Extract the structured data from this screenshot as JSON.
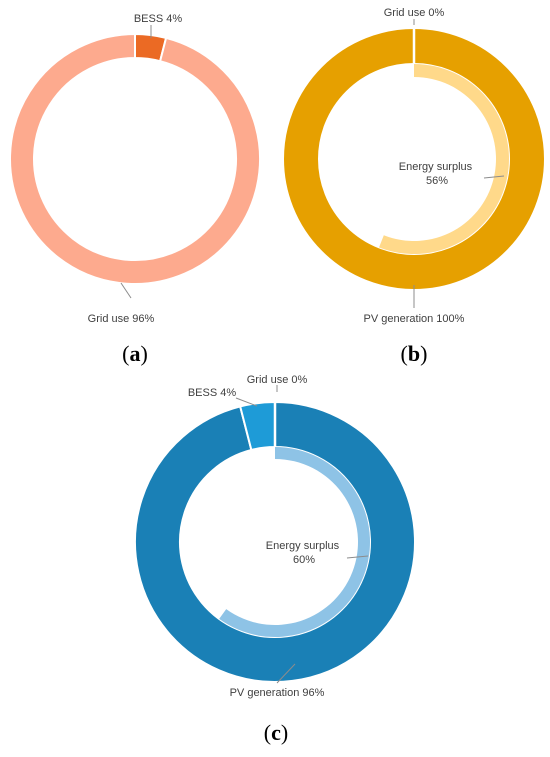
{
  "chart_data": [
    {
      "type": "pie",
      "panel": "a",
      "colors": {
        "Grid use": "#FDAA8E",
        "BESS": "#EB6A24"
      },
      "series": [
        {
          "name": "outer",
          "slices": [
            {
              "label": "BESS",
              "value": 4,
              "text": "BESS 4%"
            },
            {
              "label": "Grid use",
              "value": 96,
              "text": "Grid use 96%"
            }
          ]
        }
      ]
    },
    {
      "type": "pie",
      "panel": "b",
      "colors": {
        "PV generation": "#E6A000",
        "Grid use": "#E6A000",
        "Energy surplus": "#FFD98A"
      },
      "series": [
        {
          "name": "outer",
          "slices": [
            {
              "label": "Grid use",
              "value": 0,
              "text": "Grid use 0%"
            },
            {
              "label": "PV generation",
              "value": 100,
              "text": "PV generation 100%"
            }
          ]
        },
        {
          "name": "inner",
          "slices": [
            {
              "label": "Energy surplus",
              "value": 56,
              "text_line1": "Energy surplus",
              "text_line2": "56%"
            }
          ]
        }
      ]
    },
    {
      "type": "pie",
      "panel": "c",
      "colors": {
        "PV generation": "#1A80B6",
        "BESS": "#1E9BD7",
        "Grid use": "#1A80B6",
        "Energy surplus": "#8EC3E6"
      },
      "series": [
        {
          "name": "outer",
          "slices": [
            {
              "label": "Grid use",
              "value": 0,
              "text": "Grid use 0%"
            },
            {
              "label": "PV generation",
              "value": 96,
              "text": "PV generation 96%"
            },
            {
              "label": "BESS",
              "value": 4,
              "text": "BESS 4%"
            }
          ]
        },
        {
          "name": "inner",
          "slices": [
            {
              "label": "Energy surplus",
              "value": 60,
              "text_line1": "Energy surplus",
              "text_line2": "60%"
            }
          ]
        }
      ]
    }
  ],
  "captions": {
    "a": {
      "open": "(",
      "letter": "a",
      "close": ")"
    },
    "b": {
      "open": "(",
      "letter": "b",
      "close": ")"
    },
    "c": {
      "open": "(",
      "letter": "c",
      "close": ")"
    }
  }
}
